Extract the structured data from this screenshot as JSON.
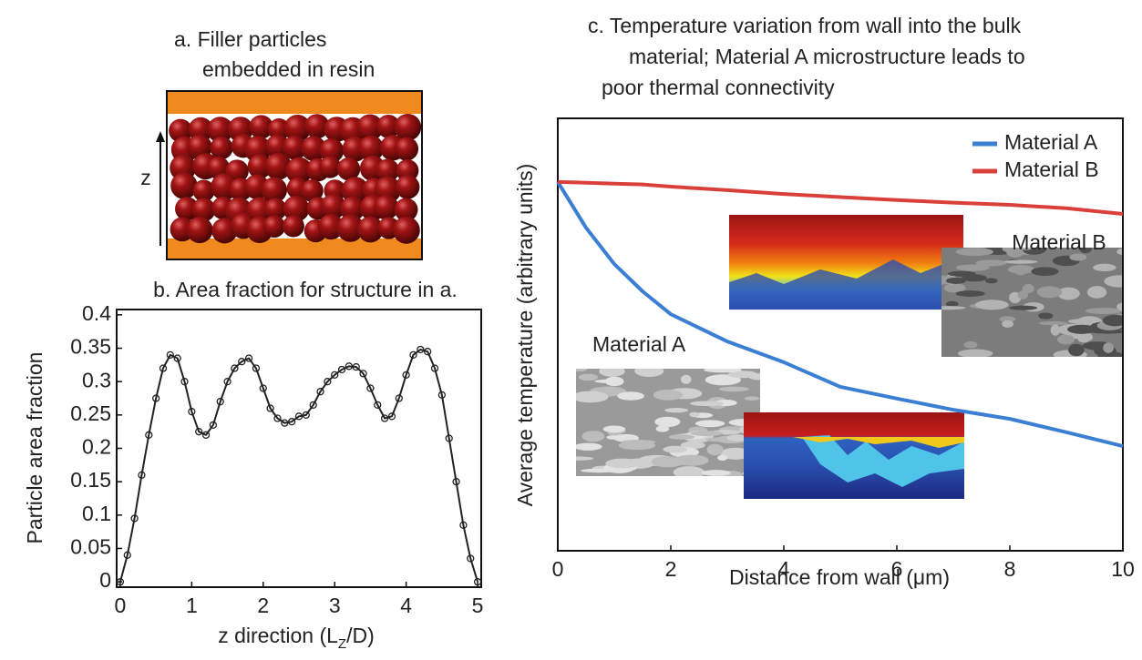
{
  "panel_a": {
    "title": [
      "a. Filler particles",
      "embedded in resin"
    ],
    "axis_label": "z"
  },
  "chart_data": [
    {
      "type": "line",
      "title": "b. Area fraction for structure in a.",
      "xlabel": [
        "z direction (L",
        "Z",
        "/D)"
      ],
      "ylabel": "Particle area fraction",
      "x": [
        0,
        0.1,
        0.2,
        0.3,
        0.4,
        0.5,
        0.6,
        0.7,
        0.8,
        0.9,
        1.0,
        1.1,
        1.2,
        1.3,
        1.4,
        1.5,
        1.6,
        1.7,
        1.8,
        1.9,
        2.0,
        2.1,
        2.2,
        2.3,
        2.4,
        2.5,
        2.6,
        2.7,
        2.8,
        2.9,
        3.0,
        3.1,
        3.2,
        3.3,
        3.4,
        3.5,
        3.6,
        3.7,
        3.8,
        3.9,
        4.0,
        4.1,
        4.2,
        4.3,
        4.4,
        4.5,
        4.6,
        4.7,
        4.8,
        4.9,
        5.0
      ],
      "series": [
        {
          "color": "#222222",
          "marker": "circle",
          "values": [
            0,
            0.04,
            0.095,
            0.16,
            0.22,
            0.275,
            0.32,
            0.34,
            0.335,
            0.3,
            0.255,
            0.225,
            0.22,
            0.235,
            0.27,
            0.3,
            0.32,
            0.33,
            0.335,
            0.32,
            0.29,
            0.26,
            0.245,
            0.238,
            0.24,
            0.248,
            0.25,
            0.265,
            0.285,
            0.3,
            0.31,
            0.318,
            0.323,
            0.322,
            0.312,
            0.29,
            0.265,
            0.245,
            0.248,
            0.275,
            0.31,
            0.34,
            0.348,
            0.345,
            0.32,
            0.28,
            0.215,
            0.15,
            0.085,
            0.035,
            0
          ]
        }
      ],
      "xlim": [
        -0.05,
        5.05
      ],
      "ylim": [
        -0.008,
        0.408
      ],
      "xticks": [
        0,
        1,
        2,
        3,
        4,
        5
      ],
      "yticks": [
        0,
        0.05,
        0.1,
        0.15,
        0.2,
        0.25,
        0.3,
        0.35,
        0.4
      ]
    },
    {
      "type": "line",
      "title": [
        "c. Temperature variation from wall into the bulk",
        "material; Material A microstructure leads to",
        "poor thermal connectivity"
      ],
      "xlabel": "Distance from wall (μm)",
      "ylabel": "Average temperature (arbitrary units)",
      "x": [
        0,
        0.5,
        1,
        1.5,
        2,
        3,
        4,
        5,
        6,
        7,
        8,
        9,
        10
      ],
      "series": [
        {
          "name": "Material A",
          "color": "#3b7fd4",
          "values": [
            0.853,
            0.747,
            0.663,
            0.6,
            0.547,
            0.484,
            0.436,
            0.379,
            0.352,
            0.326,
            0.305,
            0.274,
            0.242
          ]
        },
        {
          "name": "Material B",
          "color": "#d9403a",
          "values": [
            0.853,
            0.851,
            0.849,
            0.847,
            0.842,
            0.834,
            0.825,
            0.818,
            0.811,
            0.805,
            0.8,
            0.792,
            0.779
          ]
        }
      ],
      "xlim": [
        0,
        10
      ],
      "ylim": [
        0,
        1
      ],
      "xticks": [
        0,
        2,
        4,
        6,
        8,
        10
      ],
      "legend": "upper right",
      "annotations": [
        {
          "text": "Material B",
          "color": "#e0413a"
        },
        {
          "text": "Material A",
          "color": "#3b7fd4"
        }
      ]
    }
  ]
}
